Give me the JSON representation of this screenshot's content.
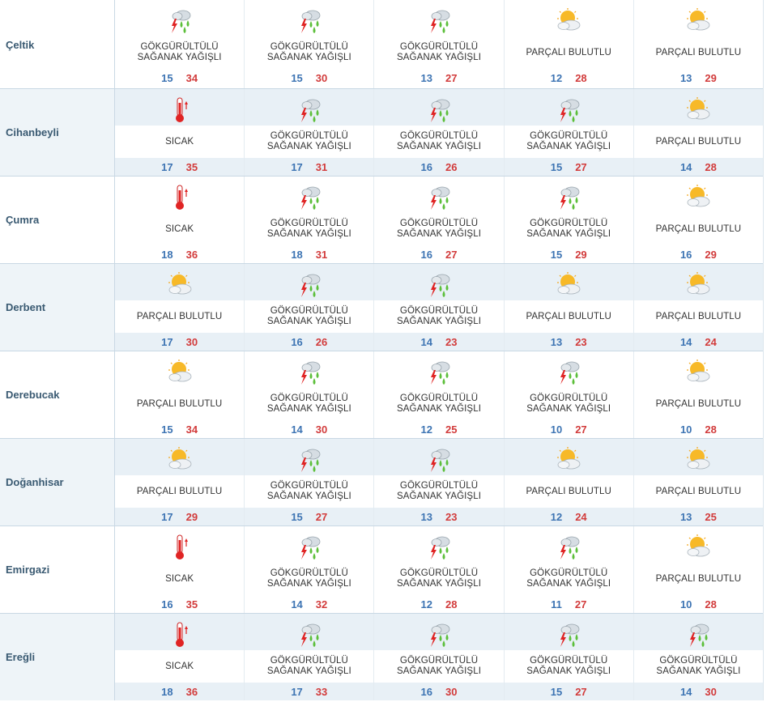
{
  "labels": {
    "thunder": "GÖKGÜRÜLTÜLÜ\nSAĞANAK YAĞIŞLI",
    "partly": "PARÇALI BULUTLU",
    "hot": "SICAK"
  },
  "rows": [
    {
      "city": "Çeltik",
      "alt": false,
      "days": [
        {
          "icon": "thunderstorm-icon",
          "desc": "GÖKGÜRÜLTÜLÜ\nSAĞANAK YAĞIŞLI",
          "min": "15",
          "max": "34"
        },
        {
          "icon": "thunderstorm-icon",
          "desc": "GÖKGÜRÜLTÜLÜ\nSAĞANAK YAĞIŞLI",
          "min": "15",
          "max": "30"
        },
        {
          "icon": "thunderstorm-icon",
          "desc": "GÖKGÜRÜLTÜLÜ\nSAĞANAK YAĞIŞLI",
          "min": "13",
          "max": "27"
        },
        {
          "icon": "partly-cloudy-icon",
          "desc": "PARÇALI BULUTLU",
          "min": "12",
          "max": "28"
        },
        {
          "icon": "partly-cloudy-icon",
          "desc": "PARÇALI BULUTLU",
          "min": "13",
          "max": "29"
        }
      ]
    },
    {
      "city": "Cihanbeyli",
      "alt": true,
      "days": [
        {
          "icon": "thermometer-icon",
          "desc": "SICAK",
          "min": "17",
          "max": "35"
        },
        {
          "icon": "thunderstorm-icon",
          "desc": "GÖKGÜRÜLTÜLÜ\nSAĞANAK YAĞIŞLI",
          "min": "17",
          "max": "31"
        },
        {
          "icon": "thunderstorm-icon",
          "desc": "GÖKGÜRÜLTÜLÜ\nSAĞANAK YAĞIŞLI",
          "min": "16",
          "max": "26"
        },
        {
          "icon": "thunderstorm-icon",
          "desc": "GÖKGÜRÜLTÜLÜ\nSAĞANAK YAĞIŞLI",
          "min": "15",
          "max": "27"
        },
        {
          "icon": "partly-cloudy-icon",
          "desc": "PARÇALI BULUTLU",
          "min": "14",
          "max": "28"
        }
      ]
    },
    {
      "city": "Çumra",
      "alt": false,
      "days": [
        {
          "icon": "thermometer-icon",
          "desc": "SICAK",
          "min": "18",
          "max": "36"
        },
        {
          "icon": "thunderstorm-icon",
          "desc": "GÖKGÜRÜLTÜLÜ\nSAĞANAK YAĞIŞLI",
          "min": "18",
          "max": "31"
        },
        {
          "icon": "thunderstorm-icon",
          "desc": "GÖKGÜRÜLTÜLÜ\nSAĞANAK YAĞIŞLI",
          "min": "16",
          "max": "27"
        },
        {
          "icon": "thunderstorm-icon",
          "desc": "GÖKGÜRÜLTÜLÜ\nSAĞANAK YAĞIŞLI",
          "min": "15",
          "max": "29"
        },
        {
          "icon": "partly-cloudy-icon",
          "desc": "PARÇALI BULUTLU",
          "min": "16",
          "max": "29"
        }
      ]
    },
    {
      "city": "Derbent",
      "alt": true,
      "days": [
        {
          "icon": "partly-cloudy-icon",
          "desc": "PARÇALI BULUTLU",
          "min": "17",
          "max": "30"
        },
        {
          "icon": "thunderstorm-icon",
          "desc": "GÖKGÜRÜLTÜLÜ\nSAĞANAK YAĞIŞLI",
          "min": "16",
          "max": "26"
        },
        {
          "icon": "thunderstorm-icon",
          "desc": "GÖKGÜRÜLTÜLÜ\nSAĞANAK YAĞIŞLI",
          "min": "14",
          "max": "23"
        },
        {
          "icon": "partly-cloudy-icon",
          "desc": "PARÇALI BULUTLU",
          "min": "13",
          "max": "23"
        },
        {
          "icon": "partly-cloudy-icon",
          "desc": "PARÇALI BULUTLU",
          "min": "14",
          "max": "24"
        }
      ]
    },
    {
      "city": "Derebucak",
      "alt": false,
      "days": [
        {
          "icon": "partly-cloudy-icon",
          "desc": "PARÇALI BULUTLU",
          "min": "15",
          "max": "34"
        },
        {
          "icon": "thunderstorm-icon",
          "desc": "GÖKGÜRÜLTÜLÜ\nSAĞANAK YAĞIŞLI",
          "min": "14",
          "max": "30"
        },
        {
          "icon": "thunderstorm-icon",
          "desc": "GÖKGÜRÜLTÜLÜ\nSAĞANAK YAĞIŞLI",
          "min": "12",
          "max": "25"
        },
        {
          "icon": "thunderstorm-icon",
          "desc": "GÖKGÜRÜLTÜLÜ\nSAĞANAK YAĞIŞLI",
          "min": "10",
          "max": "27"
        },
        {
          "icon": "partly-cloudy-icon",
          "desc": "PARÇALI BULUTLU",
          "min": "10",
          "max": "28"
        }
      ]
    },
    {
      "city": "Doğanhisar",
      "alt": true,
      "days": [
        {
          "icon": "partly-cloudy-icon",
          "desc": "PARÇALI BULUTLU",
          "min": "17",
          "max": "29"
        },
        {
          "icon": "thunderstorm-icon",
          "desc": "GÖKGÜRÜLTÜLÜ\nSAĞANAK YAĞIŞLI",
          "min": "15",
          "max": "27"
        },
        {
          "icon": "thunderstorm-icon",
          "desc": "GÖKGÜRÜLTÜLÜ\nSAĞANAK YAĞIŞLI",
          "min": "13",
          "max": "23"
        },
        {
          "icon": "partly-cloudy-icon",
          "desc": "PARÇALI BULUTLU",
          "min": "12",
          "max": "24"
        },
        {
          "icon": "partly-cloudy-icon",
          "desc": "PARÇALI BULUTLU",
          "min": "13",
          "max": "25"
        }
      ]
    },
    {
      "city": "Emirgazi",
      "alt": false,
      "days": [
        {
          "icon": "thermometer-icon",
          "desc": "SICAK",
          "min": "16",
          "max": "35"
        },
        {
          "icon": "thunderstorm-icon",
          "desc": "GÖKGÜRÜLTÜLÜ\nSAĞANAK YAĞIŞLI",
          "min": "14",
          "max": "32"
        },
        {
          "icon": "thunderstorm-icon",
          "desc": "GÖKGÜRÜLTÜLÜ\nSAĞANAK YAĞIŞLI",
          "min": "12",
          "max": "28"
        },
        {
          "icon": "thunderstorm-icon",
          "desc": "GÖKGÜRÜLTÜLÜ\nSAĞANAK YAĞIŞLI",
          "min": "11",
          "max": "27"
        },
        {
          "icon": "partly-cloudy-icon",
          "desc": "PARÇALI BULUTLU",
          "min": "10",
          "max": "28"
        }
      ]
    },
    {
      "city": "Ereğli",
      "alt": true,
      "days": [
        {
          "icon": "thermometer-icon",
          "desc": "SICAK",
          "min": "18",
          "max": "36"
        },
        {
          "icon": "thunderstorm-icon",
          "desc": "GÖKGÜRÜLTÜLÜ\nSAĞANAK YAĞIŞLI",
          "min": "17",
          "max": "33"
        },
        {
          "icon": "thunderstorm-icon",
          "desc": "GÖKGÜRÜLTÜLÜ\nSAĞANAK YAĞIŞLI",
          "min": "16",
          "max": "30"
        },
        {
          "icon": "thunderstorm-icon",
          "desc": "GÖKGÜRÜLTÜLÜ\nSAĞANAK YAĞIŞLI",
          "min": "15",
          "max": "27"
        },
        {
          "icon": "thunderstorm-icon",
          "desc": "GÖKGÜRÜLTÜLÜ\nSAĞANAK YAĞIŞLI",
          "min": "14",
          "max": "30"
        }
      ]
    }
  ],
  "colors": {
    "min_temp": "#3d74b3",
    "max_temp": "#d23b3b",
    "city_text": "#3a5a72",
    "alt_band": "#e8f0f6"
  }
}
